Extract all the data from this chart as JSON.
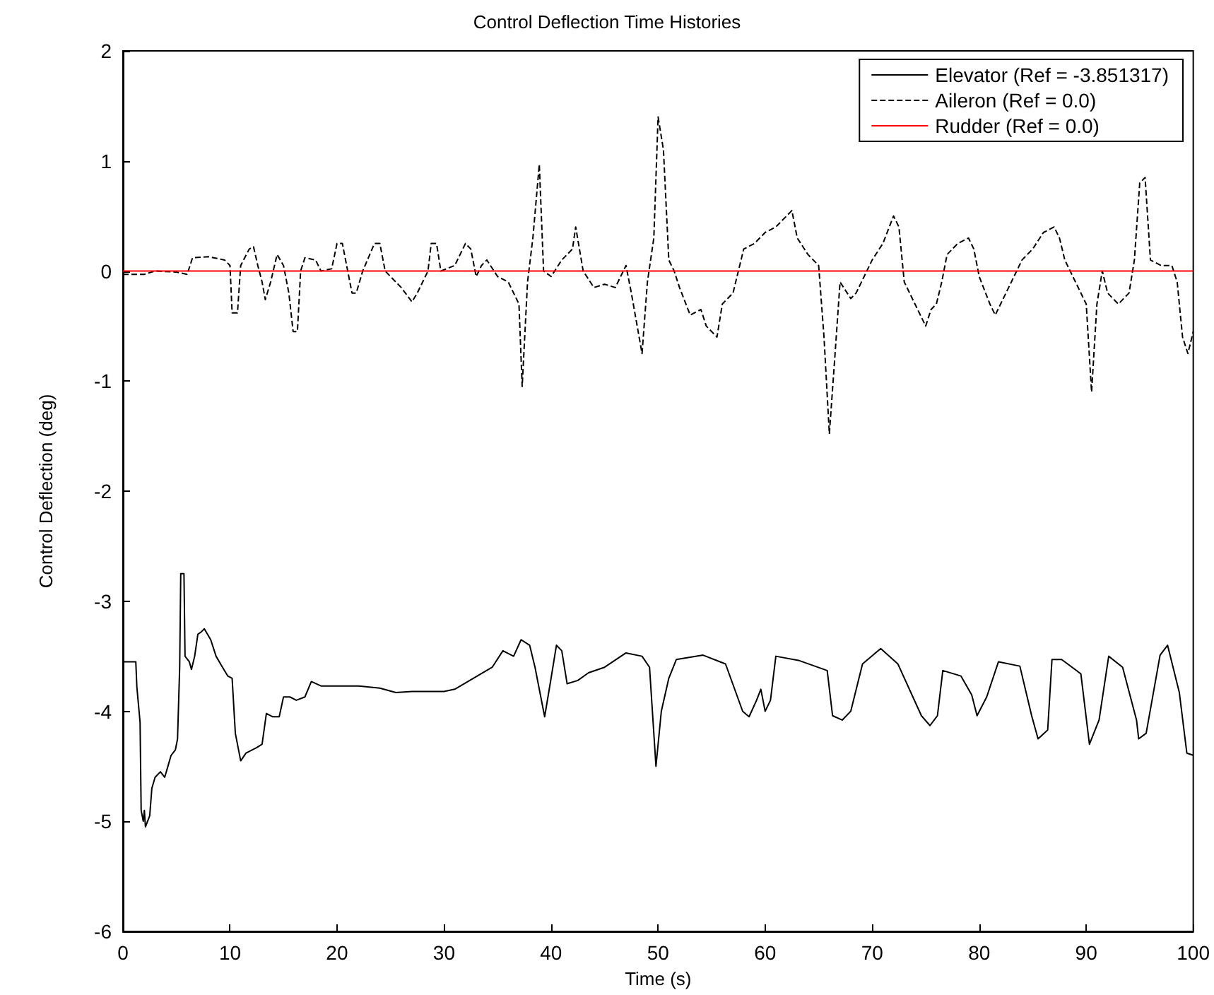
{
  "chart_data": {
    "type": "line",
    "title": "Control Deflection Time Histories",
    "xlabel": "Time (s)",
    "ylabel": "Control Deflection (deg)",
    "xlim": [
      0,
      100
    ],
    "xticks": [
      0,
      10,
      20,
      30,
      40,
      50,
      60,
      70,
      80,
      90,
      100
    ],
    "ylim": [
      -6,
      2
    ],
    "yticks": [
      -6,
      -5,
      -4,
      -3,
      -2,
      -1,
      0,
      1,
      2
    ],
    "grid": false,
    "legend": "top right",
    "series": [
      {
        "name": "Elevator (Ref = -3.851317)",
        "color": "#000000",
        "line_style": "solid",
        "x": [
          0,
          1.2,
          1.3,
          1.6,
          1.7,
          1.9,
          2.0,
          2.1,
          2.5,
          2.7,
          3.0,
          3.5,
          3.9,
          4.2,
          4.5,
          4.9,
          5.1,
          5.3,
          5.4,
          5.7,
          5.8,
          6.2,
          6.4,
          6.7,
          7.0,
          7.3,
          7.6,
          8.2,
          8.7,
          9.3,
          9.8,
          10.2,
          10.5,
          11.0,
          11.5,
          12.5,
          13.0,
          13.4,
          14.0,
          14.6,
          15.0,
          15.6,
          16.2,
          17.0,
          17.6,
          18.5,
          20,
          22,
          24,
          25.5,
          27,
          30,
          31,
          34.5,
          35.5,
          36.5,
          37.2,
          38.0,
          38.5,
          39.4,
          40.0,
          40.5,
          41.0,
          41.5,
          42.5,
          43.5,
          45,
          47,
          48.5,
          49.2,
          49.8,
          50.3,
          51.0,
          51.7,
          54.2,
          56.3,
          57.9,
          58.5,
          59.2,
          59.6,
          60,
          60.5,
          61,
          63.2,
          65.8,
          66.3,
          67.2,
          68,
          69.1,
          70.8,
          72.4,
          74.6,
          75.4,
          76.1,
          76.6,
          78.3,
          79.3,
          79.8,
          80.7,
          81.8,
          83.8,
          84.9,
          85.5,
          86.4,
          86.8,
          87.7,
          89.5,
          90.3,
          91.2,
          92.1,
          93.4,
          94.7,
          94.9,
          95.6,
          96.9,
          97.6,
          98.7,
          99.4,
          100
        ],
        "values": [
          -3.55,
          -3.55,
          -3.78,
          -4.1,
          -4.9,
          -5.0,
          -4.9,
          -5.05,
          -4.95,
          -4.7,
          -4.6,
          -4.55,
          -4.6,
          -4.5,
          -4.4,
          -4.35,
          -4.25,
          -3.6,
          -2.75,
          -2.75,
          -3.5,
          -3.55,
          -3.62,
          -3.5,
          -3.3,
          -3.28,
          -3.25,
          -3.35,
          -3.5,
          -3.6,
          -3.68,
          -3.7,
          -4.2,
          -4.45,
          -4.38,
          -4.33,
          -4.3,
          -4.02,
          -4.05,
          -4.05,
          -3.87,
          -3.87,
          -3.9,
          -3.87,
          -3.73,
          -3.77,
          -3.77,
          -3.77,
          -3.79,
          -3.83,
          -3.82,
          -3.82,
          -3.8,
          -3.6,
          -3.45,
          -3.5,
          -3.35,
          -3.4,
          -3.6,
          -4.05,
          -3.7,
          -3.4,
          -3.45,
          -3.75,
          -3.72,
          -3.65,
          -3.6,
          -3.47,
          -3.5,
          -3.6,
          -4.5,
          -4.0,
          -3.7,
          -3.53,
          -3.49,
          -3.57,
          -4.0,
          -4.05,
          -3.9,
          -3.8,
          -4.0,
          -3.9,
          -3.5,
          -3.54,
          -3.63,
          -4.04,
          -4.08,
          -4.0,
          -3.57,
          -3.43,
          -3.57,
          -4.04,
          -4.13,
          -4.04,
          -3.63,
          -3.68,
          -3.85,
          -4.04,
          -3.87,
          -3.55,
          -3.59,
          -4.04,
          -4.25,
          -4.17,
          -3.53,
          -3.53,
          -3.66,
          -4.3,
          -4.08,
          -3.5,
          -3.6,
          -4.08,
          -4.25,
          -4.2,
          -3.49,
          -3.4,
          -3.83,
          -4.38,
          -4.4
        ]
      },
      {
        "name": "Aileron (Ref = 0.0)",
        "color": "#000000",
        "line_style": "dashed",
        "x": [
          0,
          2,
          3,
          5,
          6,
          6.5,
          8,
          9.5,
          10,
          10.2,
          10.7,
          11,
          11.8,
          12.2,
          12.6,
          13,
          13.3,
          13.8,
          14.4,
          15,
          15.5,
          15.9,
          16.3,
          16.6,
          17,
          18,
          18.5,
          19.5,
          20,
          20.5,
          21,
          21.4,
          21.8,
          22.4,
          23.5,
          24,
          24.5,
          25,
          26,
          27,
          27.5,
          28.5,
          28.8,
          29.3,
          29.7,
          31,
          32,
          32.5,
          33,
          33.5,
          34,
          35,
          36,
          37,
          37.3,
          37.8,
          38.3,
          38.9,
          39.3,
          40,
          41,
          42,
          42.3,
          43,
          44,
          45,
          46,
          47,
          47.5,
          48.5,
          49,
          49.6,
          50.0,
          50.5,
          51,
          51.5,
          52,
          53,
          54,
          54.5,
          55.5,
          56,
          57,
          57.5,
          58,
          59,
          60,
          61,
          62,
          62.5,
          63,
          64,
          65,
          65.5,
          66,
          66.5,
          67,
          68,
          68.5,
          69,
          70,
          71,
          72,
          72.5,
          73,
          74,
          75,
          75.5,
          76,
          76.5,
          77,
          78,
          79,
          79.5,
          80,
          81,
          81.5,
          82,
          83,
          84,
          85,
          86,
          87,
          87.5,
          88,
          89,
          90,
          90.5,
          91,
          91.5,
          92,
          93,
          94,
          94.5,
          95,
          95.5,
          96,
          97,
          98,
          98.5,
          99,
          99.5,
          100
        ],
        "values": [
          -0.03,
          -0.03,
          0,
          -0.01,
          -0.03,
          0.12,
          0.13,
          0.1,
          0.05,
          -0.38,
          -0.38,
          0.05,
          0.2,
          0.22,
          0.05,
          -0.1,
          -0.26,
          -0.1,
          0.15,
          0.05,
          -0.2,
          -0.55,
          -0.55,
          0,
          0.12,
          0.1,
          0,
          0.02,
          0.25,
          0.25,
          0,
          -0.2,
          -0.2,
          0,
          0.25,
          0.25,
          0,
          -0.05,
          -0.15,
          -0.28,
          -0.2,
          0,
          0.25,
          0.25,
          0,
          0.05,
          0.25,
          0.2,
          -0.05,
          0.05,
          0.1,
          -0.05,
          -0.1,
          -0.3,
          -1.05,
          -0.1,
          0.3,
          0.97,
          0,
          -0.05,
          0.1,
          0.2,
          0.4,
          0,
          -0.15,
          -0.12,
          -0.15,
          0.05,
          -0.2,
          -0.75,
          -0.1,
          0.3,
          1.4,
          1.1,
          0.1,
          0,
          -0.15,
          -0.4,
          -0.35,
          -0.5,
          -0.6,
          -0.3,
          -0.2,
          0,
          0.2,
          0.25,
          0.35,
          0.4,
          0.5,
          0.55,
          0.3,
          0.15,
          0.05,
          -0.6,
          -1.48,
          -0.8,
          -0.1,
          -0.25,
          -0.2,
          -0.1,
          0.1,
          0.25,
          0.5,
          0.4,
          -0.1,
          -0.3,
          -0.5,
          -0.35,
          -0.3,
          -0.1,
          0.15,
          0.25,
          0.3,
          0.2,
          -0.05,
          -0.3,
          -0.4,
          -0.3,
          -0.1,
          0.1,
          0.2,
          0.35,
          0.4,
          0.3,
          0.1,
          -0.1,
          -0.3,
          -1.1,
          -0.3,
          0,
          -0.2,
          -0.3,
          -0.2,
          0.1,
          0.8,
          0.85,
          0.1,
          0.05,
          0.05,
          -0.1,
          -0.6,
          -0.75,
          -0.55
        ]
      },
      {
        "name": "Rudder (Ref = 0.0)",
        "color": "#ff0000",
        "line_style": "solid",
        "x": [
          0,
          100
        ],
        "values": [
          0,
          0
        ]
      }
    ]
  }
}
